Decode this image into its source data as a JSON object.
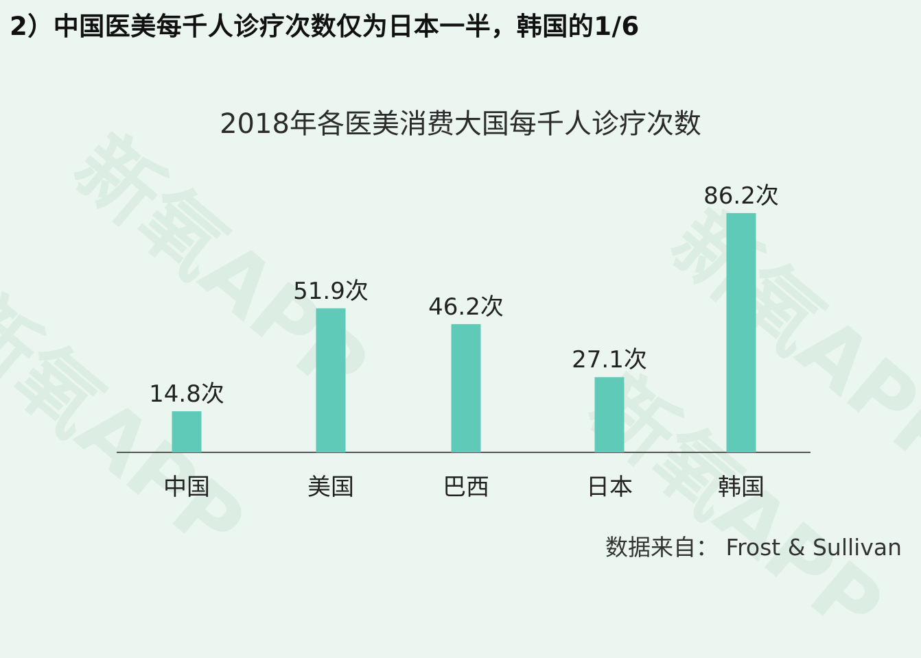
{
  "headline": "2）中国医美每千人诊疗次数仅为日本一半，韩国的1/6",
  "watermark": "新氧APP",
  "source": "数据来自：  Frost & Sullivan",
  "colors": {
    "bar": "#5ecab7",
    "axis": "#555555",
    "background": "#eaf6ef"
  },
  "chart_data": {
    "type": "bar",
    "title": "2018年各医美消费大国每千人诊疗次数",
    "categories": [
      "中国",
      "美国",
      "巴西",
      "日本",
      "韩国"
    ],
    "values": [
      14.8,
      51.9,
      46.2,
      27.1,
      86.2
    ],
    "value_labels": [
      "14.8次",
      "51.9次",
      "46.2次",
      "27.1次",
      "86.2次"
    ],
    "xlabel": "",
    "ylabel": "",
    "ylim": [
      0,
      100
    ],
    "grid": false,
    "legend": "none"
  }
}
